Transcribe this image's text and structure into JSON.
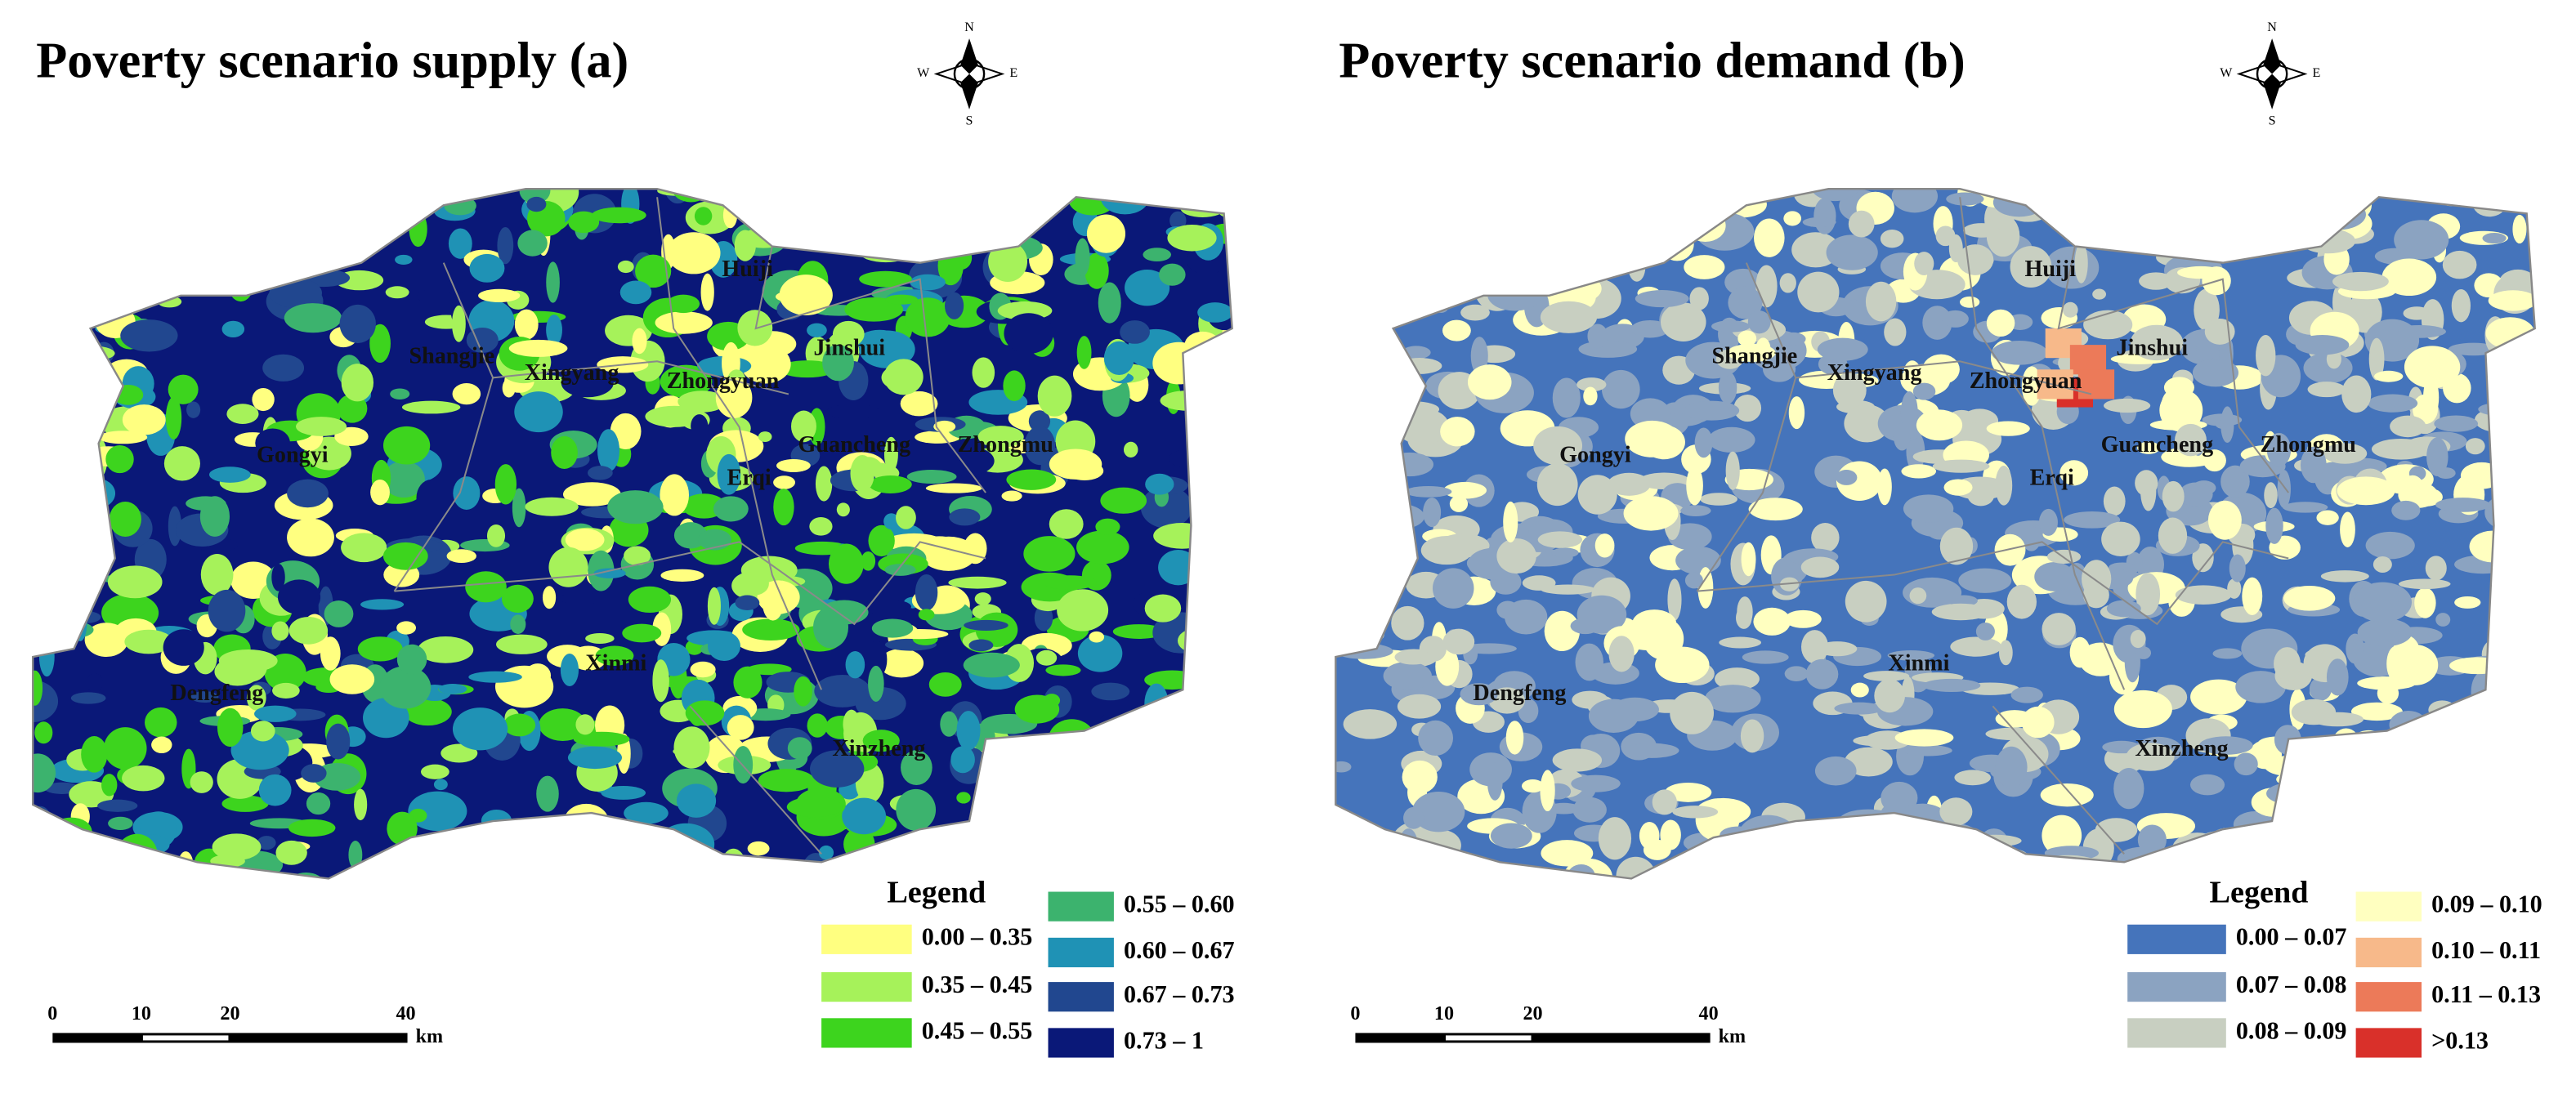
{
  "panels": [
    {
      "title": "Poverty scenario supply  (a)",
      "compass": {
        "north": "N",
        "south": "S",
        "east": "E",
        "west": "W"
      },
      "districts": [
        "Huiji",
        "Shangjie",
        "Xingyang",
        "Zhongyuan",
        "Jinshui",
        "Gongyi",
        "Guancheng",
        "Zhongmu",
        "Erqi",
        "Xinmi",
        "Dengfeng",
        "Xinzheng"
      ],
      "legend": {
        "title": "Legend",
        "items": [
          {
            "label": "0.00 – 0.35",
            "color": "#ffff80"
          },
          {
            "label": "0.35 – 0.45",
            "color": "#a6f25a"
          },
          {
            "label": "0.45 – 0.55",
            "color": "#3dd41e"
          },
          {
            "label": "0.55 – 0.60",
            "color": "#3cb36e"
          },
          {
            "label": "0.60 – 0.67",
            "color": "#1f92b5"
          },
          {
            "label": "0.67 – 0.73",
            "color": "#21478f"
          },
          {
            "label": "0.73 – 1",
            "color": "#0a1878"
          }
        ]
      },
      "scale_bar": {
        "ticks": [
          "0",
          "10",
          "20",
          "40"
        ],
        "unit": "km"
      }
    },
    {
      "title": "Poverty scenario demand (b)",
      "compass": {
        "north": "N",
        "south": "S",
        "east": "E",
        "west": "W"
      },
      "districts": [
        "Huiji",
        "Shangjie",
        "Xingyang",
        "Zhongyuan",
        "Jinshui",
        "Gongyi",
        "Guancheng",
        "Zhongmu",
        "Erqi",
        "Xinmi",
        "Dengfeng",
        "Xinzheng"
      ],
      "legend": {
        "title": "Legend",
        "items": [
          {
            "label": "0.00 – 0.07",
            "color": "#4574bb"
          },
          {
            "label": "0.07 – 0.08",
            "color": "#8ba3c1"
          },
          {
            "label": "0.08 – 0.09",
            "color": "#c8cfc1"
          },
          {
            "label": "0.09 – 0.10",
            "color": "#ffffc0"
          },
          {
            "label": "0.10 – 0.11",
            "color": "#f7b98a"
          },
          {
            "label": "0.11 – 0.13",
            "color": "#ec7a59"
          },
          {
            "label": ">0.13",
            "color": "#d9302a"
          }
        ]
      },
      "scale_bar": {
        "ticks": [
          "0",
          "10",
          "20",
          "40"
        ],
        "unit": "km"
      }
    }
  ]
}
